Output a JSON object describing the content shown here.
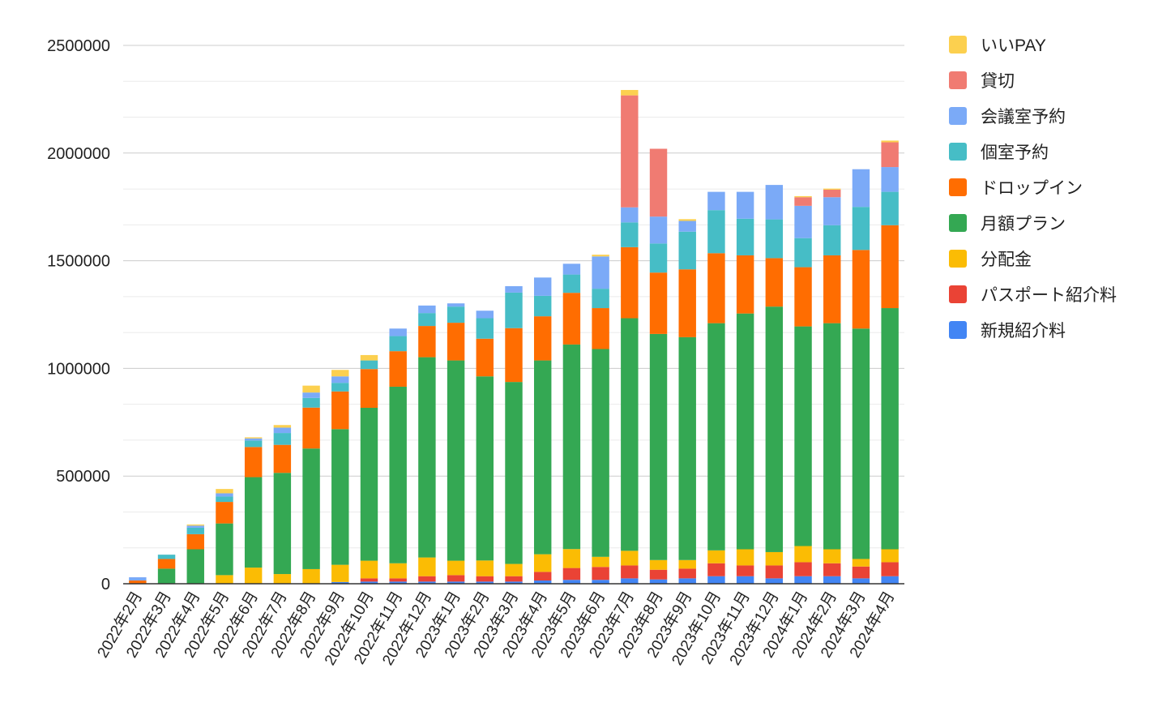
{
  "chart_data": {
    "type": "bar",
    "stacked": true,
    "title": "",
    "xlabel": "",
    "ylabel": "",
    "ylim": [
      0,
      2500000
    ],
    "y_ticks": [
      0,
      500000,
      1000000,
      1500000,
      2000000,
      2500000
    ],
    "grid": true,
    "legend_position": "right",
    "categories": [
      "2022年2月",
      "2022年3月",
      "2022年4月",
      "2022年5月",
      "2022年6月",
      "2022年7月",
      "2022年8月",
      "2022年9月",
      "2022年10月",
      "2022年11月",
      "2022年12月",
      "2023年1月",
      "2023年2月",
      "2023年3月",
      "2023年4月",
      "2023年5月",
      "2023年6月",
      "2023年7月",
      "2023年8月",
      "2023年9月",
      "2023年10月",
      "2023年11月",
      "2023年12月",
      "2024年1月",
      "2024年2月",
      "2024年3月",
      "2024年4月"
    ],
    "series": [
      {
        "name": "新規紹介料",
        "color": "#4285F4",
        "values": [
          0,
          0,
          0,
          0,
          0,
          0,
          0,
          8000,
          10000,
          10000,
          10000,
          10000,
          10000,
          10000,
          15000,
          18000,
          18000,
          25000,
          20000,
          25000,
          35000,
          35000,
          25000,
          35000,
          35000,
          25000,
          35000
        ]
      },
      {
        "name": "パスポート紹介料",
        "color": "#EA4335",
        "values": [
          0,
          0,
          0,
          0,
          0,
          0,
          0,
          0,
          15000,
          15000,
          25000,
          30000,
          25000,
          25000,
          40000,
          55000,
          60000,
          60000,
          45000,
          45000,
          60000,
          50000,
          60000,
          65000,
          60000,
          55000,
          65000
        ]
      },
      {
        "name": "分配金",
        "color": "#FBBC04",
        "values": [
          0,
          0,
          0,
          40000,
          75000,
          45000,
          68000,
          80000,
          82000,
          70000,
          87000,
          67000,
          73000,
          57000,
          82000,
          88000,
          47000,
          68000,
          45000,
          40000,
          60000,
          75000,
          62000,
          75000,
          65000,
          35000,
          60000
        ]
      },
      {
        "name": "月額プラン",
        "color": "#34A853",
        "values": [
          0,
          70000,
          160000,
          240000,
          420000,
          470000,
          560000,
          630000,
          710000,
          820000,
          930000,
          930000,
          855000,
          845000,
          900000,
          950000,
          965000,
          1080000,
          1050000,
          1035000,
          1055000,
          1095000,
          1140000,
          1020000,
          1050000,
          1070000,
          1120000
        ]
      },
      {
        "name": "ドロップイン",
        "color": "#FF6D01",
        "values": [
          15000,
          45000,
          70000,
          100000,
          140000,
          130000,
          190000,
          175000,
          180000,
          165000,
          145000,
          175000,
          175000,
          250000,
          205000,
          240000,
          190000,
          330000,
          285000,
          315000,
          325000,
          270000,
          225000,
          275000,
          315000,
          365000,
          385000
        ]
      },
      {
        "name": "個室予約",
        "color": "#46BDC6",
        "values": [
          0,
          20000,
          30000,
          25000,
          30000,
          55000,
          45000,
          40000,
          40000,
          70000,
          60000,
          75000,
          95000,
          165000,
          95000,
          85000,
          90000,
          115000,
          135000,
          175000,
          200000,
          170000,
          180000,
          135000,
          140000,
          200000,
          155000
        ]
      },
      {
        "name": "会議室予約",
        "color": "#7BAAF7",
        "values": [
          15000,
          0,
          10000,
          15000,
          10000,
          25000,
          25000,
          30000,
          0,
          35000,
          35000,
          15000,
          35000,
          30000,
          85000,
          50000,
          150000,
          70000,
          125000,
          50000,
          85000,
          125000,
          160000,
          150000,
          130000,
          175000,
          115000
        ]
      },
      {
        "name": "貸切",
        "color": "#F07B72",
        "values": [
          0,
          0,
          0,
          0,
          0,
          0,
          0,
          0,
          0,
          0,
          0,
          0,
          0,
          0,
          0,
          0,
          0,
          520000,
          315000,
          0,
          0,
          0,
          0,
          40000,
          35000,
          0,
          115000
        ]
      },
      {
        "name": "いいPAY",
        "color": "#FCD04F",
        "values": [
          0,
          0,
          5000,
          20000,
          5000,
          12000,
          32000,
          30000,
          25000,
          0,
          0,
          0,
          0,
          0,
          0,
          0,
          8000,
          25000,
          0,
          8000,
          0,
          0,
          0,
          5000,
          5000,
          0,
          8000
        ]
      }
    ],
    "legend_order": [
      "いいPAY",
      "貸切",
      "会議室予約",
      "個室予約",
      "ドロップイン",
      "月額プラン",
      "分配金",
      "パスポート紹介料",
      "新規紹介料"
    ]
  }
}
